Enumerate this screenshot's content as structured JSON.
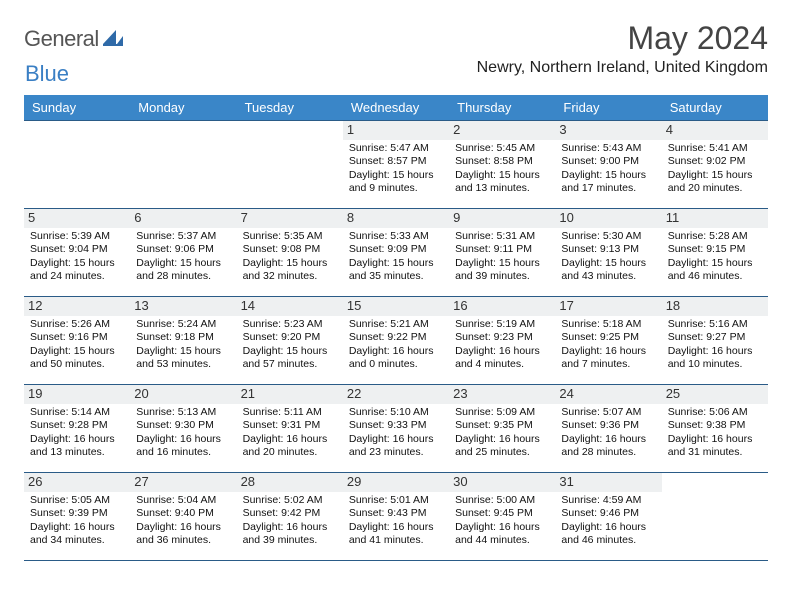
{
  "brand": {
    "word1": "General",
    "word2": "Blue"
  },
  "header": {
    "month_title": "May 2024",
    "location": "Newry, Northern Ireland, United Kingdom"
  },
  "colors": {
    "header_bg": "#3a86c8",
    "header_fg": "#ffffff",
    "rule": "#2a5b87",
    "daynum_bg": "#eef0f1",
    "logo_accent": "#3a7fc4",
    "logo_text": "#555555"
  },
  "weekdays": [
    "Sunday",
    "Monday",
    "Tuesday",
    "Wednesday",
    "Thursday",
    "Friday",
    "Saturday"
  ],
  "cells": [
    [
      {
        "n": "",
        "sr": "",
        "ss": "",
        "dl": ""
      },
      {
        "n": "",
        "sr": "",
        "ss": "",
        "dl": ""
      },
      {
        "n": "",
        "sr": "",
        "ss": "",
        "dl": ""
      },
      {
        "n": "1",
        "sr": "Sunrise: 5:47 AM",
        "ss": "Sunset: 8:57 PM",
        "dl": "Daylight: 15 hours and 9 minutes."
      },
      {
        "n": "2",
        "sr": "Sunrise: 5:45 AM",
        "ss": "Sunset: 8:58 PM",
        "dl": "Daylight: 15 hours and 13 minutes."
      },
      {
        "n": "3",
        "sr": "Sunrise: 5:43 AM",
        "ss": "Sunset: 9:00 PM",
        "dl": "Daylight: 15 hours and 17 minutes."
      },
      {
        "n": "4",
        "sr": "Sunrise: 5:41 AM",
        "ss": "Sunset: 9:02 PM",
        "dl": "Daylight: 15 hours and 20 minutes."
      }
    ],
    [
      {
        "n": "5",
        "sr": "Sunrise: 5:39 AM",
        "ss": "Sunset: 9:04 PM",
        "dl": "Daylight: 15 hours and 24 minutes."
      },
      {
        "n": "6",
        "sr": "Sunrise: 5:37 AM",
        "ss": "Sunset: 9:06 PM",
        "dl": "Daylight: 15 hours and 28 minutes."
      },
      {
        "n": "7",
        "sr": "Sunrise: 5:35 AM",
        "ss": "Sunset: 9:08 PM",
        "dl": "Daylight: 15 hours and 32 minutes."
      },
      {
        "n": "8",
        "sr": "Sunrise: 5:33 AM",
        "ss": "Sunset: 9:09 PM",
        "dl": "Daylight: 15 hours and 35 minutes."
      },
      {
        "n": "9",
        "sr": "Sunrise: 5:31 AM",
        "ss": "Sunset: 9:11 PM",
        "dl": "Daylight: 15 hours and 39 minutes."
      },
      {
        "n": "10",
        "sr": "Sunrise: 5:30 AM",
        "ss": "Sunset: 9:13 PM",
        "dl": "Daylight: 15 hours and 43 minutes."
      },
      {
        "n": "11",
        "sr": "Sunrise: 5:28 AM",
        "ss": "Sunset: 9:15 PM",
        "dl": "Daylight: 15 hours and 46 minutes."
      }
    ],
    [
      {
        "n": "12",
        "sr": "Sunrise: 5:26 AM",
        "ss": "Sunset: 9:16 PM",
        "dl": "Daylight: 15 hours and 50 minutes."
      },
      {
        "n": "13",
        "sr": "Sunrise: 5:24 AM",
        "ss": "Sunset: 9:18 PM",
        "dl": "Daylight: 15 hours and 53 minutes."
      },
      {
        "n": "14",
        "sr": "Sunrise: 5:23 AM",
        "ss": "Sunset: 9:20 PM",
        "dl": "Daylight: 15 hours and 57 minutes."
      },
      {
        "n": "15",
        "sr": "Sunrise: 5:21 AM",
        "ss": "Sunset: 9:22 PM",
        "dl": "Daylight: 16 hours and 0 minutes."
      },
      {
        "n": "16",
        "sr": "Sunrise: 5:19 AM",
        "ss": "Sunset: 9:23 PM",
        "dl": "Daylight: 16 hours and 4 minutes."
      },
      {
        "n": "17",
        "sr": "Sunrise: 5:18 AM",
        "ss": "Sunset: 9:25 PM",
        "dl": "Daylight: 16 hours and 7 minutes."
      },
      {
        "n": "18",
        "sr": "Sunrise: 5:16 AM",
        "ss": "Sunset: 9:27 PM",
        "dl": "Daylight: 16 hours and 10 minutes."
      }
    ],
    [
      {
        "n": "19",
        "sr": "Sunrise: 5:14 AM",
        "ss": "Sunset: 9:28 PM",
        "dl": "Daylight: 16 hours and 13 minutes."
      },
      {
        "n": "20",
        "sr": "Sunrise: 5:13 AM",
        "ss": "Sunset: 9:30 PM",
        "dl": "Daylight: 16 hours and 16 minutes."
      },
      {
        "n": "21",
        "sr": "Sunrise: 5:11 AM",
        "ss": "Sunset: 9:31 PM",
        "dl": "Daylight: 16 hours and 20 minutes."
      },
      {
        "n": "22",
        "sr": "Sunrise: 5:10 AM",
        "ss": "Sunset: 9:33 PM",
        "dl": "Daylight: 16 hours and 23 minutes."
      },
      {
        "n": "23",
        "sr": "Sunrise: 5:09 AM",
        "ss": "Sunset: 9:35 PM",
        "dl": "Daylight: 16 hours and 25 minutes."
      },
      {
        "n": "24",
        "sr": "Sunrise: 5:07 AM",
        "ss": "Sunset: 9:36 PM",
        "dl": "Daylight: 16 hours and 28 minutes."
      },
      {
        "n": "25",
        "sr": "Sunrise: 5:06 AM",
        "ss": "Sunset: 9:38 PM",
        "dl": "Daylight: 16 hours and 31 minutes."
      }
    ],
    [
      {
        "n": "26",
        "sr": "Sunrise: 5:05 AM",
        "ss": "Sunset: 9:39 PM",
        "dl": "Daylight: 16 hours and 34 minutes."
      },
      {
        "n": "27",
        "sr": "Sunrise: 5:04 AM",
        "ss": "Sunset: 9:40 PM",
        "dl": "Daylight: 16 hours and 36 minutes."
      },
      {
        "n": "28",
        "sr": "Sunrise: 5:02 AM",
        "ss": "Sunset: 9:42 PM",
        "dl": "Daylight: 16 hours and 39 minutes."
      },
      {
        "n": "29",
        "sr": "Sunrise: 5:01 AM",
        "ss": "Sunset: 9:43 PM",
        "dl": "Daylight: 16 hours and 41 minutes."
      },
      {
        "n": "30",
        "sr": "Sunrise: 5:00 AM",
        "ss": "Sunset: 9:45 PM",
        "dl": "Daylight: 16 hours and 44 minutes."
      },
      {
        "n": "31",
        "sr": "Sunrise: 4:59 AM",
        "ss": "Sunset: 9:46 PM",
        "dl": "Daylight: 16 hours and 46 minutes."
      },
      {
        "n": "",
        "sr": "",
        "ss": "",
        "dl": ""
      }
    ]
  ]
}
